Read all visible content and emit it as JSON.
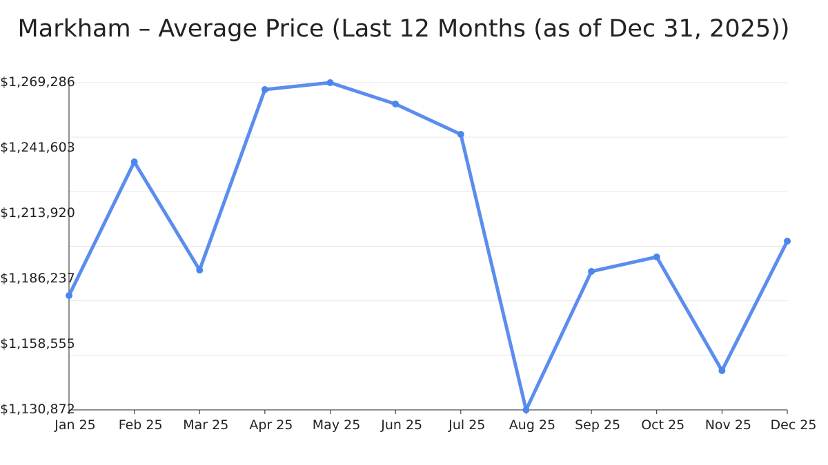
{
  "chart_data": {
    "type": "line",
    "title": "Markham – Average Price (Last 12 Months (as of Dec 31, 2025))",
    "xlabel": "",
    "ylabel": "",
    "categories": [
      "Jan 25",
      "Feb 25",
      "Mar 25",
      "Apr 25",
      "May 25",
      "Jun 25",
      "Jul 25",
      "Aug 25",
      "Sep 25",
      "Oct 25",
      "Nov 25",
      "Dec 25"
    ],
    "values": [
      1179243,
      1235776,
      1190026,
      1266373,
      1269286,
      1260253,
      1247432,
      1130872,
      1189443,
      1195563,
      1147482,
      1202265
    ],
    "ylim": [
      1130872,
      1269286
    ],
    "y_ticks": [
      "$1,130,872",
      "$1,158,555",
      "$1,186,237",
      "$1,213,920",
      "$1,241,603",
      "$1,269,286"
    ],
    "grid": true,
    "legend": "none",
    "line_color": "#5b8def",
    "marker_color": "#4a86ee"
  }
}
